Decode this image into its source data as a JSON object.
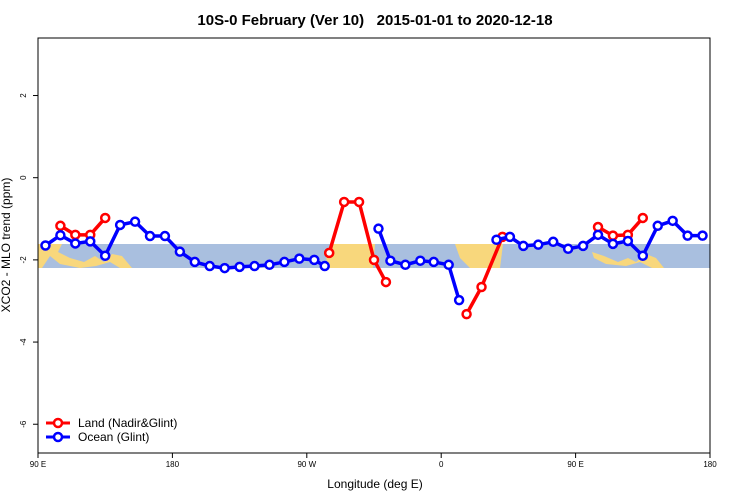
{
  "chart_data": {
    "type": "line",
    "title": "10S-0 February (Ver 10)   2015-01-01 to 2020-12-18",
    "x_label": "Longitude (deg E)",
    "y_label": "XCO2 - MLO trend (ppm)",
    "xlim": [
      90,
      540
    ],
    "ylim": [
      -6.7,
      3.4
    ],
    "xticks": [
      {
        "value": 90,
        "label": "90 E"
      },
      {
        "value": 180,
        "label": "180"
      },
      {
        "value": 270,
        "label": "90 W"
      },
      {
        "value": 360,
        "label": "0"
      },
      {
        "value": 450,
        "label": "90 E"
      },
      {
        "value": 540,
        "label": "180"
      }
    ],
    "yticks": [
      -6,
      -4,
      -2,
      0,
      2
    ],
    "legend": "bottom-left",
    "series": [
      {
        "name": "Land (Nadir&Glint)",
        "color": "#ff0000",
        "x": [
          105,
          115,
          125,
          135,
          null,
          285,
          295,
          305,
          315,
          323,
          null,
          377,
          387,
          401,
          null,
          465,
          475,
          485,
          495
        ],
        "values": [
          -1.17,
          -1.39,
          -1.39,
          -0.98,
          null,
          -1.83,
          -0.59,
          -0.59,
          -2.0,
          -2.54,
          null,
          -3.32,
          -2.66,
          -1.44,
          null,
          -1.2,
          -1.41,
          -1.39,
          -0.98
        ]
      },
      {
        "name": "Ocean (Glint)",
        "color": "#0000ff",
        "x": [
          95,
          105,
          115,
          125,
          135,
          145,
          155,
          165,
          175,
          185,
          195,
          205,
          215,
          225,
          235,
          245,
          255,
          265,
          275,
          282,
          null,
          318,
          326,
          336,
          346,
          355,
          365,
          372,
          null,
          397,
          406,
          415,
          425,
          435,
          445,
          455,
          465,
          475,
          485,
          495,
          505,
          515,
          525,
          535
        ],
        "values": [
          -1.65,
          -1.4,
          -1.6,
          -1.55,
          -1.9,
          -1.15,
          -1.07,
          -1.42,
          -1.42,
          -1.8,
          -2.05,
          -2.15,
          -2.2,
          -2.17,
          -2.15,
          -2.12,
          -2.05,
          -1.97,
          -2.0,
          -2.15,
          null,
          -1.24,
          -2.02,
          -2.12,
          -2.02,
          -2.05,
          -2.12,
          -2.98,
          null,
          -1.51,
          -1.44,
          -1.66,
          -1.63,
          -1.56,
          -1.73,
          -1.66,
          -1.39,
          -1.61,
          -1.54,
          -1.9,
          -1.17,
          -1.05,
          -1.41,
          -1.41
        ]
      }
    ]
  }
}
